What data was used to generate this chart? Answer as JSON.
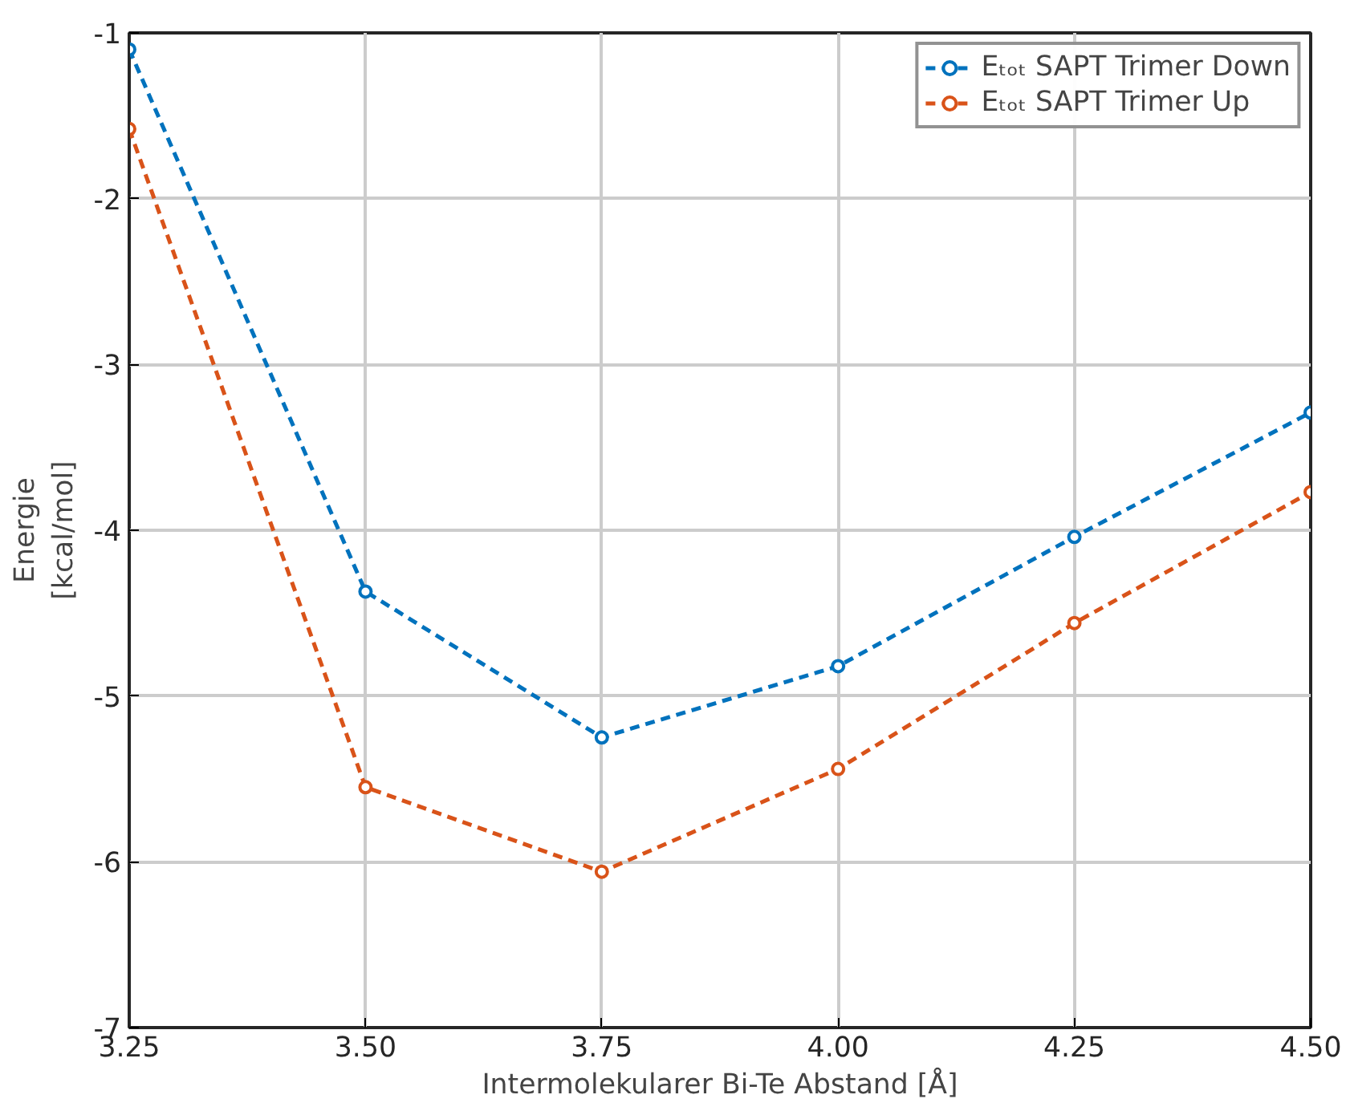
{
  "chart_data": {
    "type": "line",
    "xlabel": "Intermolekularer Bi-Te Abstand [Å]",
    "ylabel": "Energie\n[kcal/mol]",
    "x": [
      3.25,
      3.5,
      3.75,
      4.0,
      4.25,
      4.5
    ],
    "series": [
      {
        "name": "Eₜₒₜ SAPT Trimer Down",
        "color": "#0072bd",
        "values": [
          -1.1,
          -4.37,
          -5.25,
          -4.82,
          -4.04,
          -3.29
        ]
      },
      {
        "name": "Eₜₒₜ SAPT Trimer Up",
        "color": "#d95319",
        "values": [
          -1.58,
          -5.55,
          -6.06,
          -5.44,
          -4.56,
          -3.77
        ]
      }
    ],
    "xlim": [
      3.25,
      4.5
    ],
    "ylim": [
      -7,
      -1
    ],
    "xticks": [
      3.25,
      {
        "value": 3.5,
        "label": "3.50"
      },
      3.75,
      {
        "value": 4.0,
        "label": "4.00"
      },
      4.25,
      {
        "value": 4.5,
        "label": "4.50"
      }
    ],
    "yticks": [
      -7,
      -6,
      -5,
      -4,
      -3,
      -2,
      -1
    ],
    "grid": true,
    "legend": "top right",
    "marker": "circle",
    "line_style": "dashed"
  }
}
